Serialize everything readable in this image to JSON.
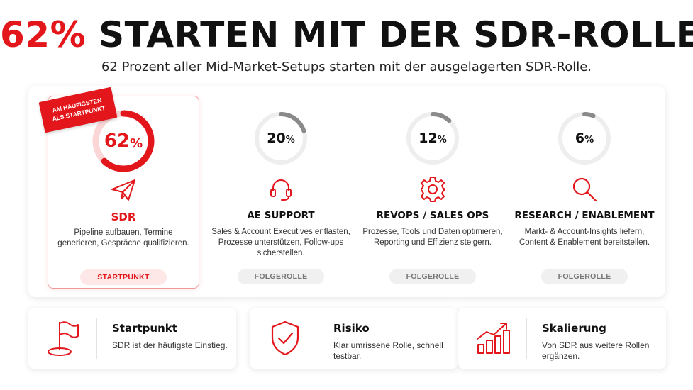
{
  "header": {
    "title_pct": "62%",
    "title_rest": "STARTEN MIT DER SDR-ROLLE",
    "subtitle": "62 Prozent aller Mid-Market-Setups starten mit der ausgelagerten SDR-Rolle."
  },
  "badge": {
    "line1": "AM HÄUFIGSTEN",
    "line2": "ALS STARTPUNKT"
  },
  "roles": [
    {
      "percent_num": "62",
      "percent_sign": "%",
      "share": 0.62,
      "icon": "paper-plane-icon",
      "name": "SDR",
      "desc": "Pipeline aufbauen, Termine generieren, Gespräche qualifizieren.",
      "pill": "STARTPUNKT"
    },
    {
      "percent_num": "20",
      "percent_sign": "%",
      "share": 0.2,
      "icon": "headset-icon",
      "name": "AE SUPPORT",
      "desc": "Sales & Account Executives entlasten, Prozesse unterstützen, Follow-ups sicherstellen.",
      "pill": "FOLGEROLLE"
    },
    {
      "percent_num": "12",
      "percent_sign": "%",
      "share": 0.12,
      "icon": "gear-icon",
      "name": "REVOPS / SALES OPS",
      "desc": "Prozesse, Tools und Daten optimieren, Reporting und Effizienz steigern.",
      "pill": "FOLGEROLLE"
    },
    {
      "percent_num": "6",
      "percent_sign": "%",
      "share": 0.06,
      "icon": "magnifier-icon",
      "name": "RESEARCH / ENABLEMENT",
      "desc": "Markt- & Account-Insights liefern, Content & Enablement bereitstellen.",
      "pill": "FOLGEROLLE"
    }
  ],
  "info_cards": [
    {
      "icon": "flag-icon",
      "title": "Startpunkt",
      "text": "SDR ist der häufigste Einstieg."
    },
    {
      "icon": "shield-check-icon",
      "title": "Risiko",
      "text": "Klar umrissene Rolle, schnell testbar."
    },
    {
      "icon": "growth-chart-icon",
      "title": "Skalierung",
      "text": "Von SDR aus weitere Rollen ergänzen."
    }
  ],
  "colors": {
    "accent": "#e3161b",
    "ring_track": "#eeeeee",
    "ring_gray": "#8a8a8a",
    "text_dark": "#111111"
  }
}
